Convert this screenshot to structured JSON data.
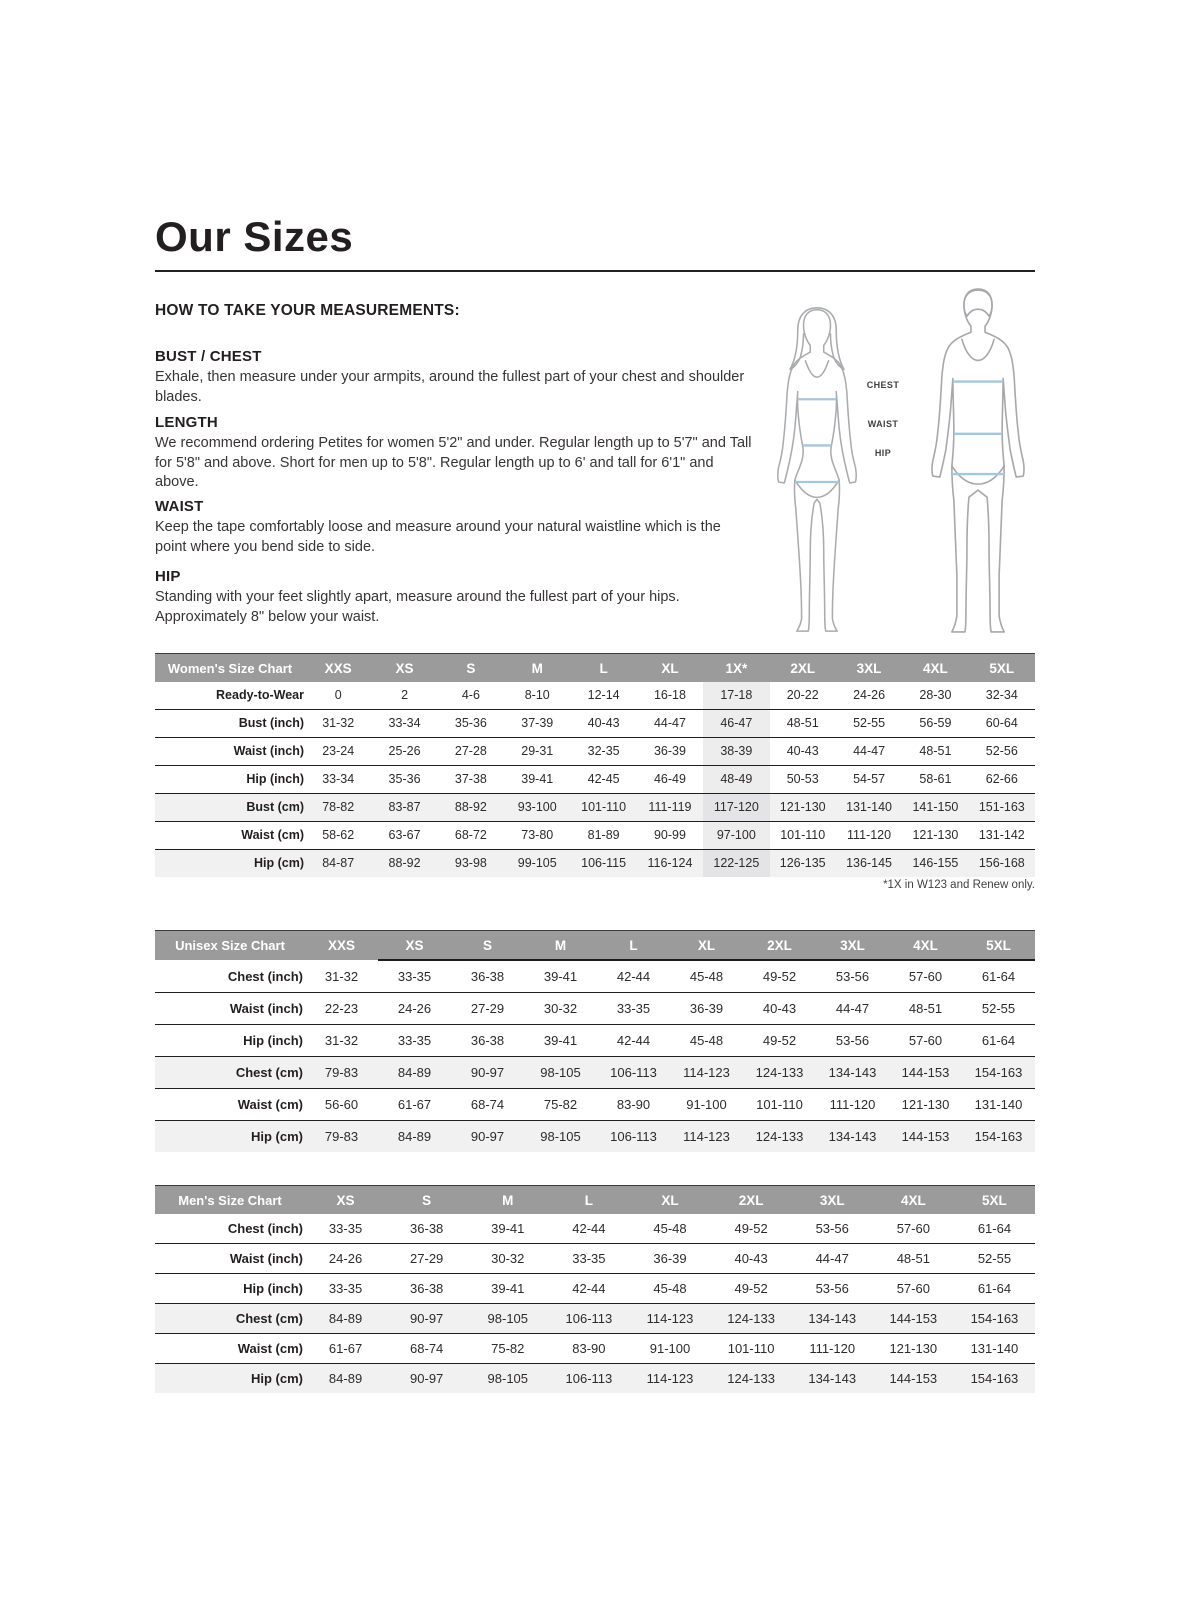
{
  "page": {
    "title": "Our Sizes",
    "how_to_heading": "HOW TO TAKE YOUR MEASUREMENTS:",
    "sections": [
      {
        "heading": "BUST / CHEST",
        "body": "Exhale, then measure under your armpits, around the fullest part of your chest and shoulder blades."
      },
      {
        "heading": "LENGTH",
        "body": "We recommend ordering Petites for women 5'2\" and under. Regular length up to 5'7\" and Tall for 5'8\" and above. Short for men up to 5'8\". Regular length up to 6' and tall for 6'1\" and above."
      },
      {
        "heading": "WAIST",
        "body": "Keep the tape comfortably loose and measure around your natural waistline which is the point where you bend side to side."
      },
      {
        "heading": "HIP",
        "body": "Standing with your feet slightly apart, measure around the fullest part of your hips. Approximately 8\" below your waist."
      }
    ]
  },
  "figures": {
    "labels": [
      "CHEST",
      "WAIST",
      "HIP"
    ]
  },
  "colors": {
    "header_background": "#9b9b9b",
    "header_text": "#ffffff",
    "row_stripe": "#f1f1f2",
    "highlight_column_tint": "#ededee",
    "measurement_line_blue": "#a5c7da",
    "text": "#231f20"
  },
  "tables": [
    {
      "name": "Women's Size Chart",
      "columns": [
        "XXS",
        "XS",
        "S",
        "M",
        "L",
        "XL",
        "1X*",
        "2XL",
        "3XL",
        "4XL",
        "5XL"
      ],
      "highlight_col_index": 6,
      "header_rule_start": null,
      "footnote": "*1X in W123 and Renew only.",
      "rows": [
        {
          "label": "Ready-to-Wear",
          "shaded": false,
          "values": [
            "0",
            "2",
            "4-6",
            "8-10",
            "12-14",
            "16-18",
            "17-18",
            "20-22",
            "24-26",
            "28-30",
            "32-34"
          ]
        },
        {
          "label": "Bust (inch)",
          "shaded": false,
          "values": [
            "31-32",
            "33-34",
            "35-36",
            "37-39",
            "40-43",
            "44-47",
            "46-47",
            "48-51",
            "52-55",
            "56-59",
            "60-64"
          ]
        },
        {
          "label": "Waist (inch)",
          "shaded": false,
          "values": [
            "23-24",
            "25-26",
            "27-28",
            "29-31",
            "32-35",
            "36-39",
            "38-39",
            "40-43",
            "44-47",
            "48-51",
            "52-56"
          ]
        },
        {
          "label": "Hip (inch)",
          "shaded": false,
          "values": [
            "33-34",
            "35-36",
            "37-38",
            "39-41",
            "42-45",
            "46-49",
            "48-49",
            "50-53",
            "54-57",
            "58-61",
            "62-66"
          ]
        },
        {
          "label": "Bust (cm)",
          "shaded": true,
          "values": [
            "78-82",
            "83-87",
            "88-92",
            "93-100",
            "101-110",
            "111-119",
            "117-120",
            "121-130",
            "131-140",
            "141-150",
            "151-163"
          ]
        },
        {
          "label": "Waist (cm)",
          "shaded": false,
          "values": [
            "58-62",
            "63-67",
            "68-72",
            "73-80",
            "81-89",
            "90-99",
            "97-100",
            "101-110",
            "111-120",
            "121-130",
            "131-142"
          ]
        },
        {
          "label": "Hip (cm)",
          "shaded": true,
          "values": [
            "84-87",
            "88-92",
            "93-98",
            "99-105",
            "106-115",
            "116-124",
            "122-125",
            "126-135",
            "136-145",
            "146-155",
            "156-168"
          ]
        }
      ]
    },
    {
      "name": "Unisex Size Chart",
      "columns": [
        "XXS",
        "XS",
        "S",
        "M",
        "L",
        "XL",
        "2XL",
        "3XL",
        "4XL",
        "5XL"
      ],
      "highlight_col_index": null,
      "header_rule_start": 1,
      "footnote": null,
      "rows": [
        {
          "label": "Chest (inch)",
          "shaded": false,
          "values": [
            "31-32",
            "33-35",
            "36-38",
            "39-41",
            "42-44",
            "45-48",
            "49-52",
            "53-56",
            "57-60",
            "61-64"
          ]
        },
        {
          "label": "Waist (inch)",
          "shaded": false,
          "values": [
            "22-23",
            "24-26",
            "27-29",
            "30-32",
            "33-35",
            "36-39",
            "40-43",
            "44-47",
            "48-51",
            "52-55"
          ]
        },
        {
          "label": "Hip (inch)",
          "shaded": false,
          "values": [
            "31-32",
            "33-35",
            "36-38",
            "39-41",
            "42-44",
            "45-48",
            "49-52",
            "53-56",
            "57-60",
            "61-64"
          ]
        },
        {
          "label": "Chest (cm)",
          "shaded": true,
          "values": [
            "79-83",
            "84-89",
            "90-97",
            "98-105",
            "106-113",
            "114-123",
            "124-133",
            "134-143",
            "144-153",
            "154-163"
          ]
        },
        {
          "label": "Waist (cm)",
          "shaded": false,
          "values": [
            "56-60",
            "61-67",
            "68-74",
            "75-82",
            "83-90",
            "91-100",
            "101-110",
            "111-120",
            "121-130",
            "131-140"
          ]
        },
        {
          "label": "Hip (cm)",
          "shaded": true,
          "values": [
            "79-83",
            "84-89",
            "90-97",
            "98-105",
            "106-113",
            "114-123",
            "124-133",
            "134-143",
            "144-153",
            "154-163"
          ]
        }
      ]
    },
    {
      "name": "Men's Size Chart",
      "columns": [
        "XS",
        "S",
        "M",
        "L",
        "XL",
        "2XL",
        "3XL",
        "4XL",
        "5XL"
      ],
      "highlight_col_index": null,
      "header_rule_start": null,
      "footnote": null,
      "rows": [
        {
          "label": "Chest (inch)",
          "shaded": false,
          "values": [
            "33-35",
            "36-38",
            "39-41",
            "42-44",
            "45-48",
            "49-52",
            "53-56",
            "57-60",
            "61-64"
          ]
        },
        {
          "label": "Waist (inch)",
          "shaded": false,
          "values": [
            "24-26",
            "27-29",
            "30-32",
            "33-35",
            "36-39",
            "40-43",
            "44-47",
            "48-51",
            "52-55"
          ]
        },
        {
          "label": "Hip (inch)",
          "shaded": false,
          "values": [
            "33-35",
            "36-38",
            "39-41",
            "42-44",
            "45-48",
            "49-52",
            "53-56",
            "57-60",
            "61-64"
          ]
        },
        {
          "label": "Chest (cm)",
          "shaded": true,
          "values": [
            "84-89",
            "90-97",
            "98-105",
            "106-113",
            "114-123",
            "124-133",
            "134-143",
            "144-153",
            "154-163"
          ]
        },
        {
          "label": "Waist (cm)",
          "shaded": false,
          "values": [
            "61-67",
            "68-74",
            "75-82",
            "83-90",
            "91-100",
            "101-110",
            "111-120",
            "121-130",
            "131-140"
          ]
        },
        {
          "label": "Hip (cm)",
          "shaded": true,
          "values": [
            "84-89",
            "90-97",
            "98-105",
            "106-113",
            "114-123",
            "124-133",
            "134-143",
            "144-153",
            "154-163"
          ]
        }
      ]
    }
  ]
}
